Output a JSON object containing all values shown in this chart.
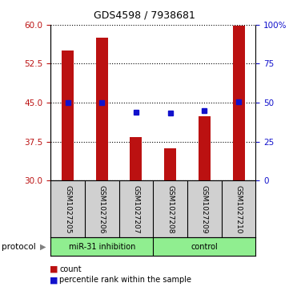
{
  "title": "GDS4598 / 7938681",
  "samples": [
    "GSM1027205",
    "GSM1027206",
    "GSM1027207",
    "GSM1027208",
    "GSM1027209",
    "GSM1027210"
  ],
  "counts": [
    55.0,
    57.5,
    38.3,
    36.2,
    42.3,
    59.8
  ],
  "percentiles": [
    50.0,
    50.0,
    44.0,
    43.3,
    44.7,
    50.5
  ],
  "bar_color": "#bb1111",
  "dot_color": "#1111cc",
  "ylim_left": [
    30,
    60
  ],
  "yticks_left": [
    30,
    37.5,
    45,
    52.5,
    60
  ],
  "ylim_right": [
    0,
    100
  ],
  "yticks_right": [
    0,
    25,
    50,
    75,
    100
  ],
  "ytick_labels_right": [
    "0",
    "25",
    "50",
    "75",
    "100%"
  ],
  "group1_label": "miR-31 inhibition",
  "group2_label": "control",
  "group_color": "#90EE90",
  "label_bg_color": "#d0d0d0",
  "protocol_label": "protocol",
  "legend_count": "count",
  "legend_percentile": "percentile rank within the sample",
  "title_fontsize": 9
}
